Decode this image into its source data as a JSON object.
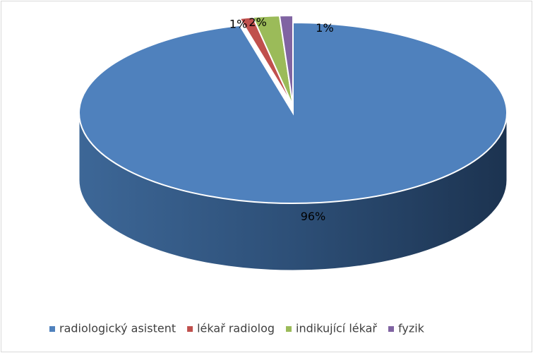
{
  "chart_data": {
    "type": "pie3d",
    "categories": [
      "radiologický asistent",
      "lékař radiolog",
      "indikující lékař",
      "fyzik"
    ],
    "values": [
      96,
      1,
      2,
      1
    ],
    "value_labels": [
      "96%",
      "1%",
      "2%",
      "1%"
    ],
    "colors": [
      "#4f81bd",
      "#c0504d",
      "#9bbb59",
      "#8064a2"
    ],
    "legend": "bottom"
  }
}
